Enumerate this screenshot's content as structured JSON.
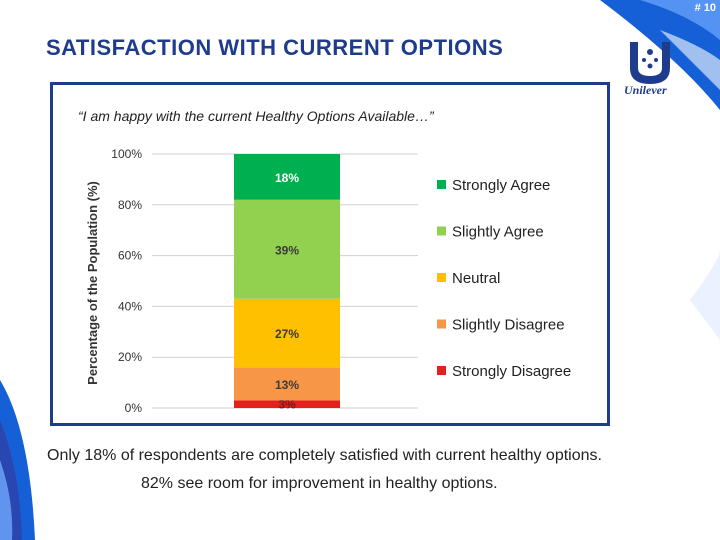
{
  "slide": {
    "number": "# 10",
    "title": "SATISFACTION WITH CURRENT OPTIONS",
    "logo_text": "Unilever"
  },
  "chart_data": {
    "type": "bar",
    "stacked": true,
    "subtitle": "“I am happy with the current Healthy Options Available…”",
    "ylabel": "Percentage of the Population (%)",
    "xlabel": "",
    "ylim": [
      0,
      100
    ],
    "yticks": [
      "0%",
      "20%",
      "40%",
      "60%",
      "80%",
      "100%"
    ],
    "grid": true,
    "legend_position": "right",
    "series": [
      {
        "name": "Strongly Disagree",
        "value": 3,
        "label": "3%",
        "color": "#e2211c"
      },
      {
        "name": "Slightly Disagree",
        "value": 13,
        "label": "13%",
        "color": "#f79646"
      },
      {
        "name": "Neutral",
        "value": 27,
        "label": "27%",
        "color": "#ffc000"
      },
      {
        "name": "Slightly Agree",
        "value": 39,
        "label": "39%",
        "color": "#92d050"
      },
      {
        "name": "Strongly Agree",
        "value": 18,
        "label": "18%",
        "color": "#00b050"
      }
    ],
    "legend_order": [
      "Strongly Agree",
      "Slightly Agree",
      "Neutral",
      "Slightly Disagree",
      "Strongly Disagree"
    ]
  },
  "footnotes": [
    "Only 18% of respondents are completely satisfied with current healthy options.",
    "82% see room for improvement in healthy options."
  ],
  "colors": {
    "brand_blue": "#1f3c8c",
    "accent_blue": "#1560d6"
  }
}
